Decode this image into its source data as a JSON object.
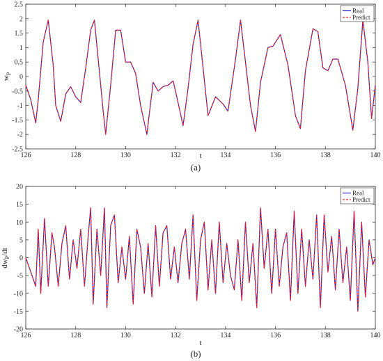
{
  "chart_data": [
    {
      "type": "line",
      "caption": "(a)",
      "xlabel": "t",
      "ylabel_main": "w",
      "ylabel_sub": "P",
      "xlim": [
        126,
        140
      ],
      "ylim": [
        -2.5,
        2.5
      ],
      "xticks": [
        126,
        128,
        130,
        132,
        134,
        136,
        138,
        140
      ],
      "yticks": [
        -2.5,
        -2,
        -1.5,
        -1,
        -0.5,
        0,
        0.5,
        1,
        1.5,
        2,
        2.5
      ],
      "grid": false,
      "legend_position": "top-right",
      "x": [
        126,
        126.2,
        126.4,
        126.5,
        126.7,
        126.9,
        127.1,
        127.2,
        127.4,
        127.6,
        127.8,
        128.0,
        128.2,
        128.4,
        128.6,
        128.75,
        128.9,
        129.1,
        129.2,
        129.4,
        129.6,
        129.8,
        130.0,
        130.2,
        130.4,
        130.6,
        130.85,
        131.1,
        131.3,
        131.5,
        131.7,
        131.9,
        132.1,
        132.3,
        132.5,
        132.7,
        132.9,
        133.1,
        133.3,
        133.6,
        133.9,
        134.1,
        134.4,
        134.6,
        134.8,
        135.0,
        135.2,
        135.4,
        135.7,
        135.9,
        136.2,
        136.5,
        136.8,
        137.0,
        137.2,
        137.5,
        137.7,
        137.9,
        138.1,
        138.3,
        138.5,
        138.8,
        139.1,
        139.3,
        139.5,
        139.7,
        139.85,
        140
      ],
      "series": [
        {
          "name": "Real",
          "color": "#1f1fcc",
          "style": "solid",
          "values": [
            -0.3,
            -0.8,
            -1.6,
            -0.8,
            1.2,
            1.95,
            0.4,
            -1.0,
            -1.55,
            -0.6,
            -0.35,
            -0.7,
            -0.9,
            0.3,
            1.6,
            1.95,
            0.6,
            -1.2,
            -2.0,
            -0.3,
            1.6,
            1.6,
            0.5,
            0.5,
            0.1,
            -1.0,
            -2.0,
            -0.2,
            -0.5,
            -0.35,
            -0.3,
            -0.15,
            -0.9,
            -1.7,
            -0.4,
            1.1,
            1.95,
            0.3,
            -1.35,
            -0.7,
            -0.95,
            -1.2,
            0.6,
            1.95,
            0.5,
            -1.0,
            -1.9,
            -0.2,
            1.0,
            1.05,
            1.45,
            0.4,
            -1.35,
            -1.8,
            0.2,
            1.65,
            1.55,
            0.3,
            0.2,
            0.6,
            0.6,
            -0.3,
            -1.85,
            -0.4,
            1.95,
            0.5,
            -1.45,
            -0.3
          ]
        },
        {
          "name": "Predict",
          "color": "#ff1f1f",
          "style": "dashed",
          "values": [
            -0.3,
            -0.8,
            -1.6,
            -0.8,
            1.2,
            1.95,
            0.4,
            -1.0,
            -1.55,
            -0.6,
            -0.35,
            -0.7,
            -0.9,
            0.3,
            1.6,
            1.95,
            0.6,
            -1.2,
            -2.0,
            -0.3,
            1.6,
            1.6,
            0.5,
            0.5,
            0.1,
            -1.0,
            -2.0,
            -0.2,
            -0.5,
            -0.35,
            -0.3,
            -0.15,
            -0.9,
            -1.7,
            -0.4,
            1.1,
            1.95,
            0.3,
            -1.35,
            -0.7,
            -0.95,
            -1.2,
            0.6,
            1.95,
            0.5,
            -1.0,
            -1.9,
            -0.2,
            1.0,
            1.05,
            1.45,
            0.4,
            -1.35,
            -1.8,
            0.2,
            1.65,
            1.55,
            0.3,
            0.2,
            0.6,
            0.6,
            -0.3,
            -1.85,
            -0.4,
            1.95,
            0.5,
            -1.45,
            -0.3
          ]
        }
      ]
    },
    {
      "type": "line",
      "caption": "(b)",
      "xlabel": "t",
      "ylabel_main": "dw",
      "ylabel_sub": "P",
      "ylabel_tail": "/dt",
      "xlim": [
        126,
        140
      ],
      "ylim": [
        -20,
        20
      ],
      "xticks": [
        126,
        128,
        130,
        132,
        134,
        136,
        138,
        140
      ],
      "yticks": [
        -20,
        -15,
        -10,
        -5,
        0,
        5,
        10,
        15,
        20
      ],
      "grid": false,
      "legend_position": "top-right",
      "x": [
        126,
        126.2,
        126.4,
        126.5,
        126.6,
        126.75,
        126.9,
        127.05,
        127.15,
        127.3,
        127.45,
        127.6,
        127.75,
        127.9,
        128.05,
        128.2,
        128.35,
        128.5,
        128.6,
        128.7,
        128.85,
        129.0,
        129.15,
        129.25,
        129.4,
        129.55,
        129.7,
        129.85,
        130.0,
        130.15,
        130.3,
        130.45,
        130.6,
        130.75,
        130.9,
        131.05,
        131.2,
        131.35,
        131.5,
        131.65,
        131.8,
        131.95,
        132.1,
        132.25,
        132.4,
        132.55,
        132.7,
        132.85,
        133.0,
        133.15,
        133.3,
        133.45,
        133.6,
        133.75,
        133.9,
        134.05,
        134.2,
        134.35,
        134.5,
        134.65,
        134.8,
        134.95,
        135.1,
        135.25,
        135.4,
        135.55,
        135.7,
        135.85,
        136.0,
        136.15,
        136.3,
        136.45,
        136.6,
        136.75,
        136.9,
        137.05,
        137.2,
        137.35,
        137.5,
        137.65,
        137.8,
        137.95,
        138.1,
        138.25,
        138.4,
        138.55,
        138.7,
        138.85,
        139.0,
        139.15,
        139.3,
        139.45,
        139.6,
        139.75,
        139.9,
        140
      ],
      "series": [
        {
          "name": "Real",
          "color": "#1f1fcc",
          "style": "solid",
          "values": [
            0,
            -4,
            -8,
            8,
            -10,
            11,
            -8,
            7,
            3,
            -8,
            4,
            9,
            -6,
            5,
            -3,
            8,
            -8,
            6,
            14,
            -13,
            8,
            -5,
            14,
            -14,
            9,
            12,
            -7,
            3,
            -6,
            6,
            -13,
            8,
            3,
            -10,
            4,
            -11,
            9,
            -8,
            7,
            9,
            -6,
            3,
            -7,
            4,
            8,
            -6,
            12,
            -12,
            5,
            10,
            -9,
            5,
            -10,
            10,
            -7,
            4,
            -5,
            -9,
            5,
            -12,
            10,
            -7,
            4,
            -14,
            14,
            -3,
            8,
            -10,
            8,
            -8,
            3,
            7,
            -12,
            13,
            -10,
            8,
            -8,
            5,
            -6,
            12,
            -14,
            12,
            -4,
            6,
            -9,
            8,
            -7,
            3,
            -12,
            13,
            -15,
            10,
            -11,
            5,
            -2,
            0
          ]
        },
        {
          "name": "Predict",
          "color": "#ff1f1f",
          "style": "dashed",
          "values": [
            0,
            -4,
            -8,
            8,
            -10,
            11,
            -8,
            7,
            3,
            -8,
            4,
            9,
            -6,
            5,
            -3,
            8,
            -8,
            6,
            14,
            -13,
            8,
            -5,
            14,
            -14,
            9,
            12,
            -7,
            3,
            -6,
            6,
            -13,
            8,
            3,
            -10,
            4,
            -11,
            9,
            -8,
            7,
            9,
            -6,
            3,
            -7,
            4,
            8,
            -6,
            12,
            -12,
            5,
            10,
            -9,
            5,
            -10,
            10,
            -7,
            4,
            -5,
            -9,
            5,
            -12,
            10,
            -7,
            4,
            -14,
            14,
            -3,
            8,
            -10,
            8,
            -8,
            3,
            7,
            -12,
            13,
            -10,
            8,
            -8,
            5,
            -6,
            12,
            -14,
            12,
            -4,
            6,
            -9,
            8,
            -7,
            3,
            -12,
            13,
            -15,
            10,
            -11,
            5,
            -2,
            0
          ]
        }
      ]
    }
  ]
}
